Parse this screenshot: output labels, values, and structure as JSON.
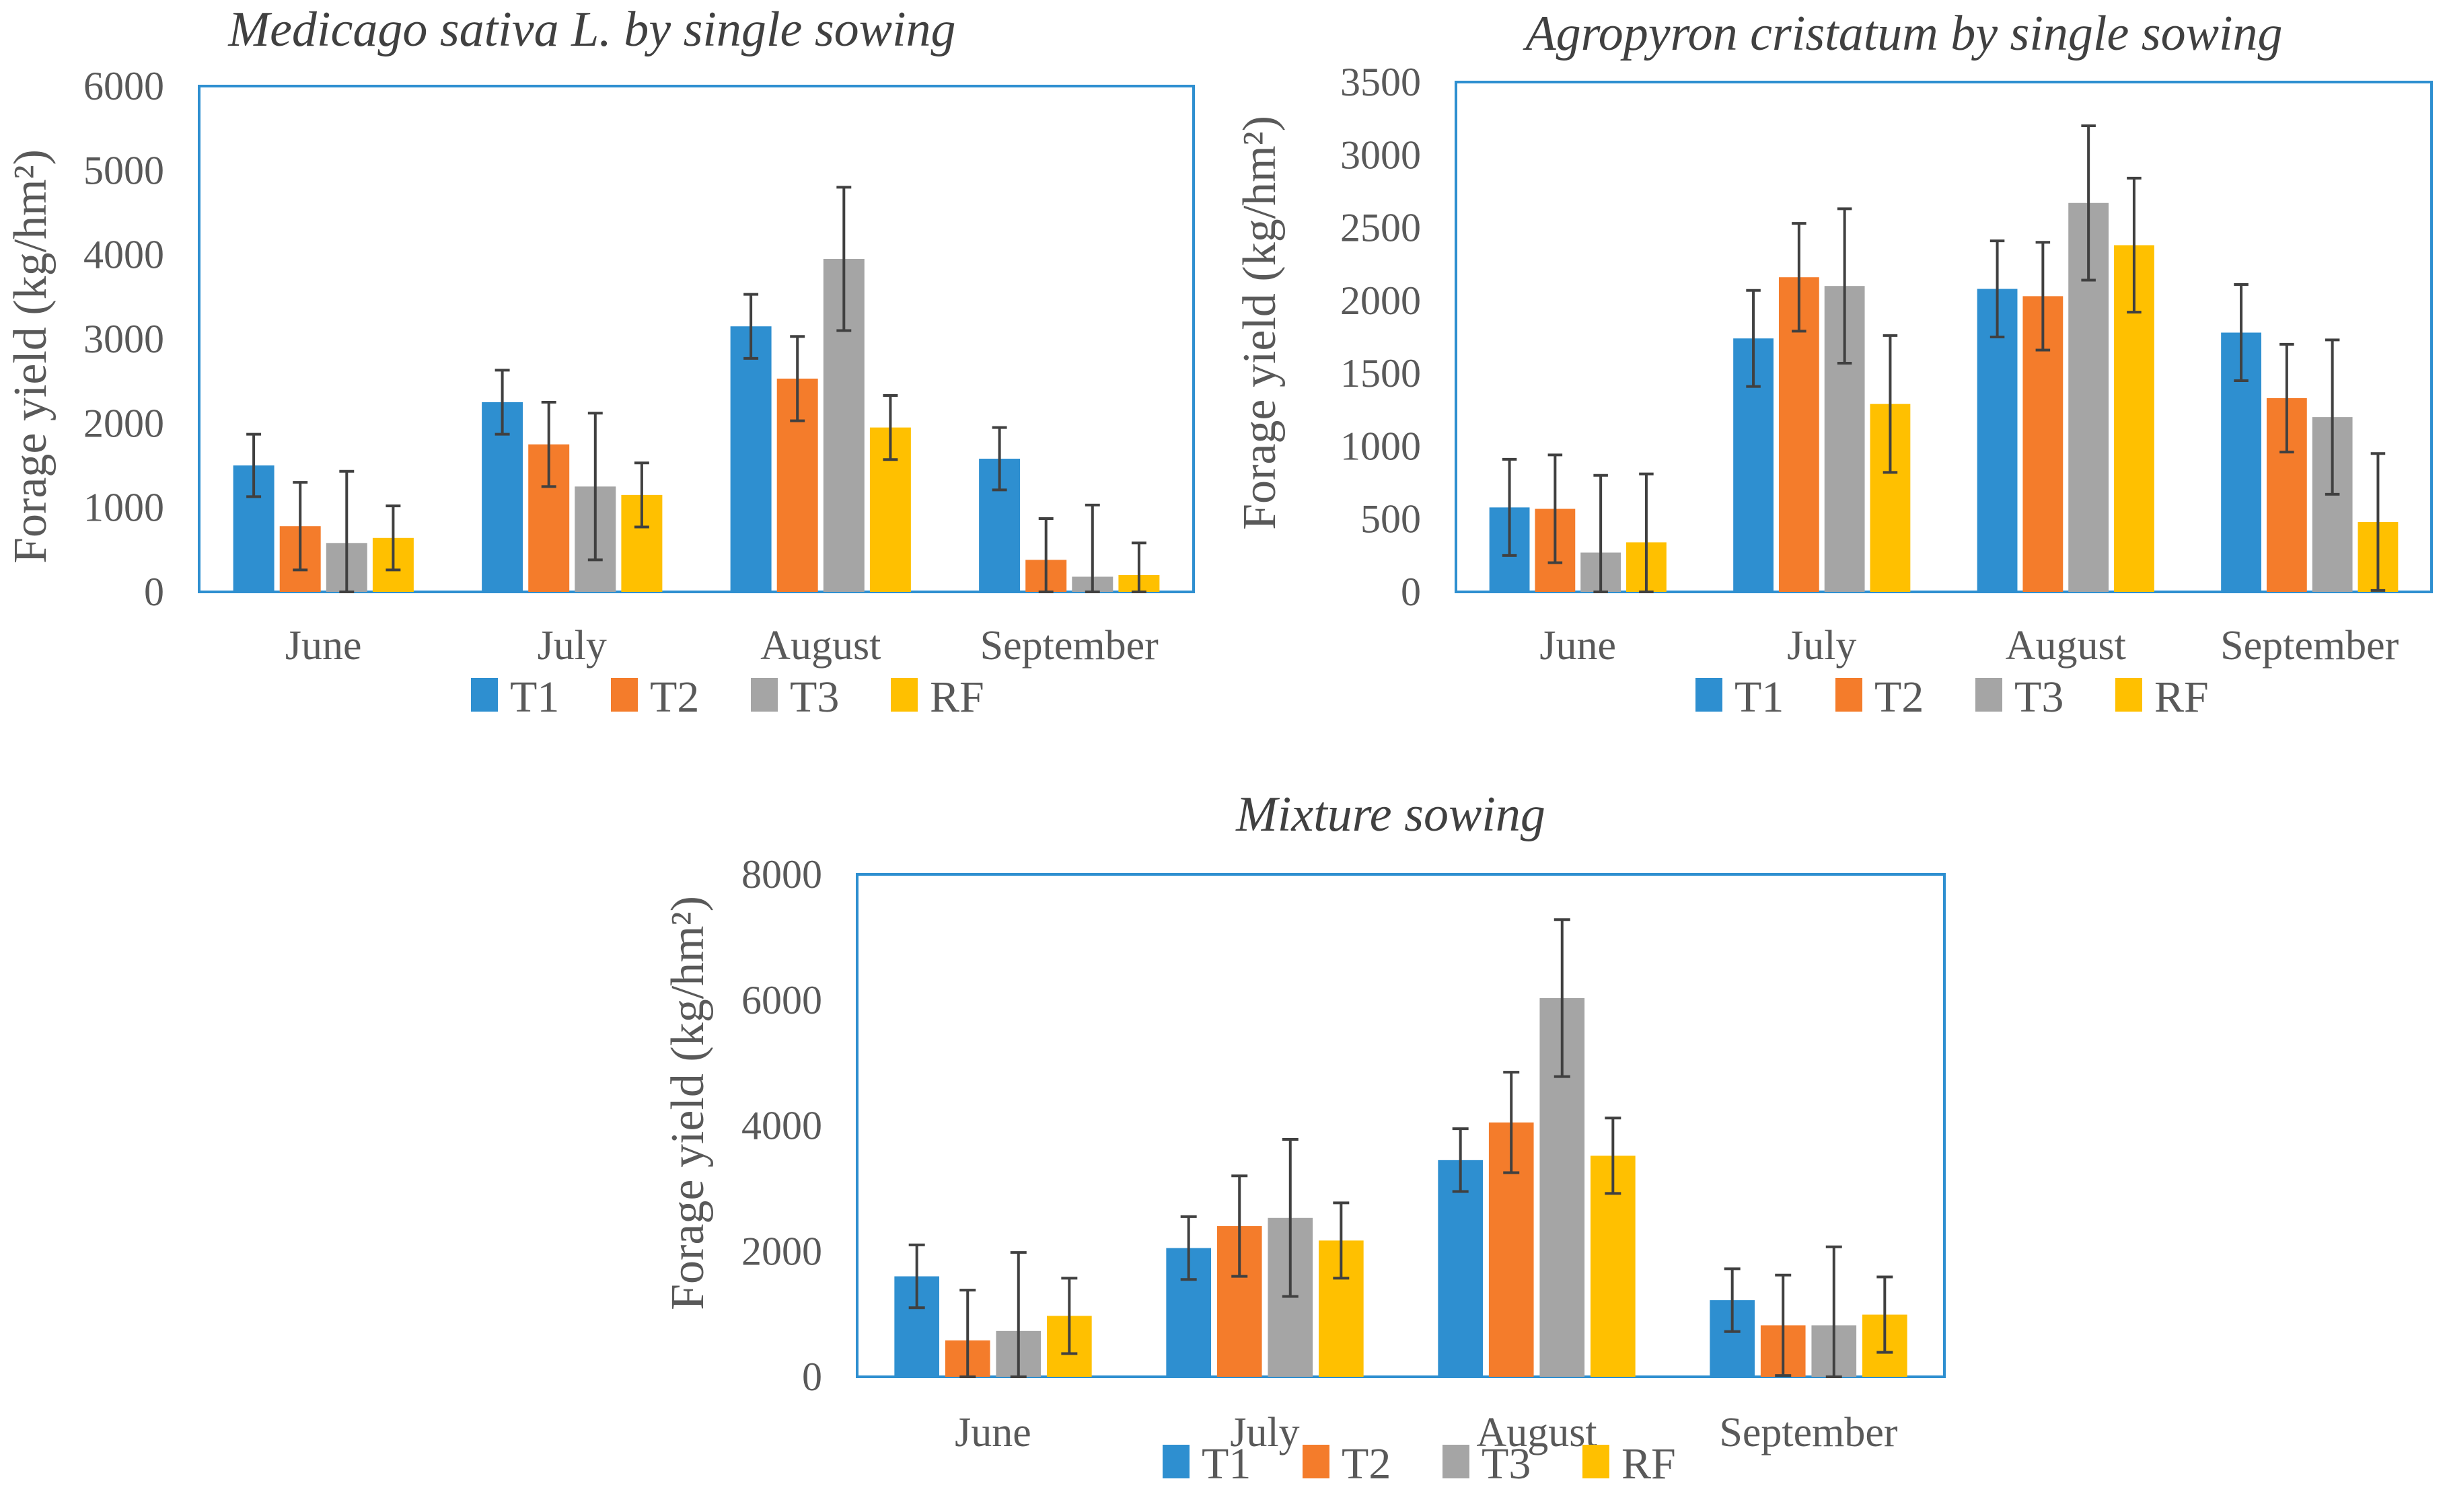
{
  "colors": {
    "T1": "#2E8FD0",
    "T2": "#F47C2B",
    "T3": "#A5A5A5",
    "RF": "#FFC000",
    "frame": "#2E8FD0",
    "text": "#595959",
    "errorbar": "#404040"
  },
  "chart_data": [
    {
      "type": "bar",
      "title": "Medicago sativa L. by single sowing",
      "xlabel": "",
      "ylabel": "Forage yield (kg/hm²)",
      "ylim": [
        0,
        6000
      ],
      "yticks": [
        0,
        1000,
        2000,
        3000,
        4000,
        5000,
        6000
      ],
      "ytick_labels": [
        "0",
        "1000",
        "2000",
        "3000",
        "4000",
        "5000",
        "6000"
      ],
      "categories": [
        "June",
        "July",
        "August",
        "September"
      ],
      "legend": "bottom",
      "series": [
        {
          "name": "T1",
          "values": [
            1500,
            2250,
            3150,
            1580
          ],
          "errors": [
            370,
            380,
            380,
            370
          ]
        },
        {
          "name": "T2",
          "values": [
            780,
            1750,
            2530,
            380
          ],
          "errors": [
            520,
            500,
            500,
            490
          ]
        },
        {
          "name": "T3",
          "values": [
            580,
            1250,
            3950,
            180
          ],
          "errors": [
            850,
            870,
            850,
            850
          ]
        },
        {
          "name": "RF",
          "values": [
            640,
            1150,
            1950,
            200
          ],
          "errors": [
            380,
            380,
            380,
            380
          ]
        }
      ]
    },
    {
      "type": "bar",
      "title": "Agropyron cristatum by single sowing",
      "xlabel": "",
      "ylabel": "Forage yield (kg/hm²)",
      "ylim": [
        0,
        3500
      ],
      "yticks": [
        0,
        500,
        1000,
        1500,
        2000,
        2500,
        3000,
        3500
      ],
      "ytick_labels": [
        "0",
        "500",
        "1000",
        "1500",
        "2000",
        "2500",
        "3000",
        "3500"
      ],
      "categories": [
        "June",
        "July",
        "August",
        "September"
      ],
      "legend": "bottom",
      "series": [
        {
          "name": "T1",
          "values": [
            580,
            1740,
            2080,
            1780
          ],
          "errors": [
            330,
            330,
            330,
            330
          ]
        },
        {
          "name": "T2",
          "values": [
            570,
            2160,
            2030,
            1330
          ],
          "errors": [
            370,
            370,
            370,
            370
          ]
        },
        {
          "name": "T3",
          "values": [
            270,
            2100,
            2670,
            1200
          ],
          "errors": [
            530,
            530,
            530,
            530
          ]
        },
        {
          "name": "RF",
          "values": [
            340,
            1290,
            2380,
            480
          ],
          "errors": [
            470,
            470,
            460,
            470
          ]
        }
      ]
    },
    {
      "type": "bar",
      "title": "Mixture sowing",
      "xlabel": "",
      "ylabel": "Forage yield (kg/hm²)",
      "ylim": [
        0,
        8000
      ],
      "yticks": [
        0,
        2000,
        4000,
        6000,
        8000
      ],
      "ytick_labels": [
        "0",
        "2000",
        "4000",
        "6000",
        "8000"
      ],
      "categories": [
        "June",
        "July",
        "August",
        "September"
      ],
      "legend": "bottom",
      "series": [
        {
          "name": "T1",
          "values": [
            1600,
            2050,
            3450,
            1220
          ],
          "errors": [
            500,
            500,
            500,
            500
          ]
        },
        {
          "name": "T2",
          "values": [
            580,
            2400,
            4050,
            820
          ],
          "errors": [
            800,
            800,
            800,
            800
          ]
        },
        {
          "name": "T3",
          "values": [
            730,
            2530,
            6030,
            820
          ],
          "errors": [
            1250,
            1250,
            1250,
            1250
          ]
        },
        {
          "name": "RF",
          "values": [
            970,
            2170,
            3520,
            990
          ],
          "errors": [
            600,
            600,
            600,
            600
          ]
        }
      ]
    }
  ]
}
